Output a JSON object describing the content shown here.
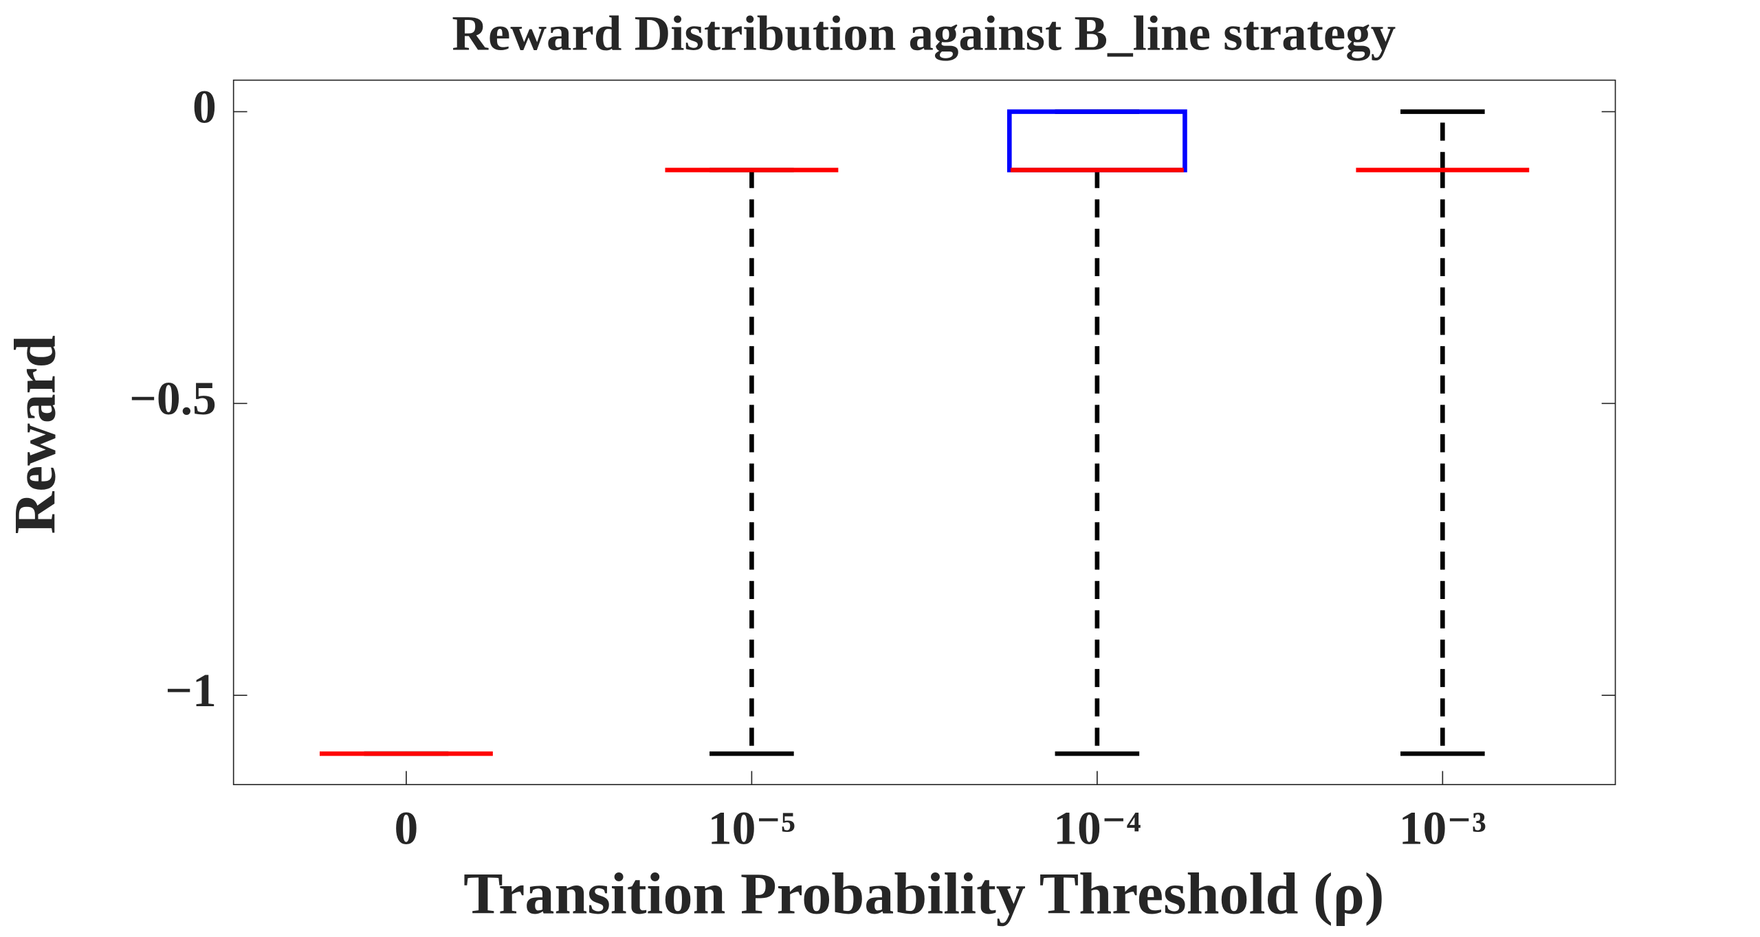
{
  "chart_data": {
    "type": "box",
    "title": "Reward Distribution against B_line strategy",
    "xlabel": "Transition Probability Threshold (ρ)",
    "ylabel": "Reward",
    "categories": [
      "0",
      "10⁻⁵",
      "10⁻⁴",
      "10⁻³"
    ],
    "min": [
      -1.1,
      -1.1,
      -1.1,
      -1.1
    ],
    "q1": [
      -1.1,
      -0.1,
      -0.1,
      -0.1
    ],
    "median": [
      -1.1,
      -0.1,
      -0.1,
      -0.1
    ],
    "q3": [
      -1.1,
      -0.1,
      0,
      -0.1
    ],
    "max": [
      -1.1,
      -0.1,
      0,
      0
    ],
    "box_color": "#0000ff",
    "median_color": "#ff0000",
    "whisker_color": "#000000",
    "ylim": [
      -1.153,
      0.054
    ],
    "yticks": [
      {
        "value": -1,
        "label": "−1"
      },
      {
        "value": -0.5,
        "label": "−0.5"
      },
      0
    ]
  }
}
